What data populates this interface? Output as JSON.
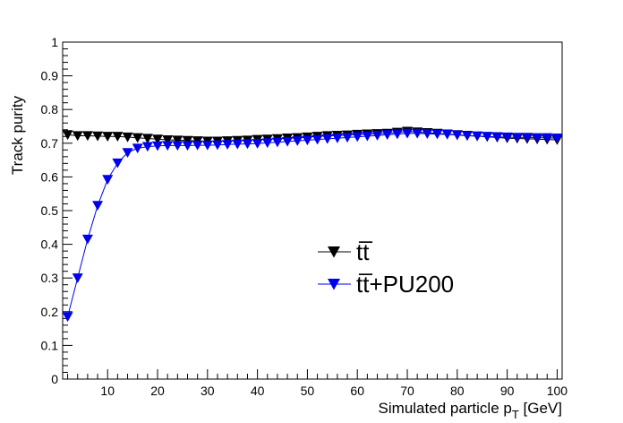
{
  "chart_data": {
    "type": "scatter",
    "title": "",
    "xlabel": "Simulated particle p",
    "xlabel_sub": "T",
    "xlabel_unit": " [GeV]",
    "ylabel": "Track purity",
    "xlim": [
      1,
      101
    ],
    "ylim": [
      0,
      1
    ],
    "x_ticks": [
      10,
      20,
      30,
      40,
      50,
      60,
      70,
      80,
      90,
      100
    ],
    "y_ticks": [
      0,
      0.1,
      0.2,
      0.3,
      0.4,
      0.5,
      0.6,
      0.7,
      0.8,
      0.9,
      1
    ],
    "y_tick_labels": [
      "0",
      "0.1",
      "0.2",
      "0.3",
      "0.4",
      "0.5",
      "0.6",
      "0.7",
      "0.8",
      "0.9",
      "1"
    ],
    "x_tick_labels": [
      "10",
      "20",
      "30",
      "40",
      "50",
      "60",
      "70",
      "80",
      "90",
      "100"
    ],
    "legend_position": "center-right",
    "x": [
      2,
      4,
      6,
      8,
      10,
      12,
      14,
      16,
      18,
      20,
      22,
      24,
      26,
      28,
      30,
      32,
      34,
      36,
      38,
      40,
      42,
      44,
      46,
      48,
      50,
      52,
      54,
      56,
      58,
      60,
      62,
      64,
      66,
      68,
      70,
      72,
      74,
      76,
      78,
      80,
      82,
      84,
      86,
      88,
      90,
      92,
      94,
      96,
      98,
      100
    ],
    "series": [
      {
        "name": "tt̅",
        "color": "#000000",
        "values": [
          0.725,
          0.722,
          0.722,
          0.721,
          0.72,
          0.72,
          0.718,
          0.716,
          0.714,
          0.712,
          0.71,
          0.709,
          0.708,
          0.707,
          0.706,
          0.706,
          0.707,
          0.708,
          0.709,
          0.711,
          0.712,
          0.713,
          0.715,
          0.716,
          0.718,
          0.72,
          0.722,
          0.723,
          0.724,
          0.726,
          0.727,
          0.728,
          0.729,
          0.732,
          0.735,
          0.733,
          0.731,
          0.729,
          0.727,
          0.725,
          0.723,
          0.721,
          0.719,
          0.717,
          0.715,
          0.714,
          0.713,
          0.712,
          0.711,
          0.71
        ]
      },
      {
        "name": "tt̅+PU200",
        "color": "#0000ee",
        "values": [
          0.185,
          0.3,
          0.415,
          0.515,
          0.592,
          0.641,
          0.672,
          0.685,
          0.69,
          0.692,
          0.693,
          0.693,
          0.693,
          0.694,
          0.694,
          0.695,
          0.696,
          0.697,
          0.698,
          0.699,
          0.701,
          0.703,
          0.705,
          0.707,
          0.709,
          0.711,
          0.713,
          0.715,
          0.717,
          0.719,
          0.721,
          0.723,
          0.725,
          0.727,
          0.729,
          0.729,
          0.728,
          0.727,
          0.726,
          0.724,
          0.722,
          0.721,
          0.72,
          0.719,
          0.718,
          0.717,
          0.717,
          0.716,
          0.716,
          0.715
        ]
      }
    ]
  }
}
